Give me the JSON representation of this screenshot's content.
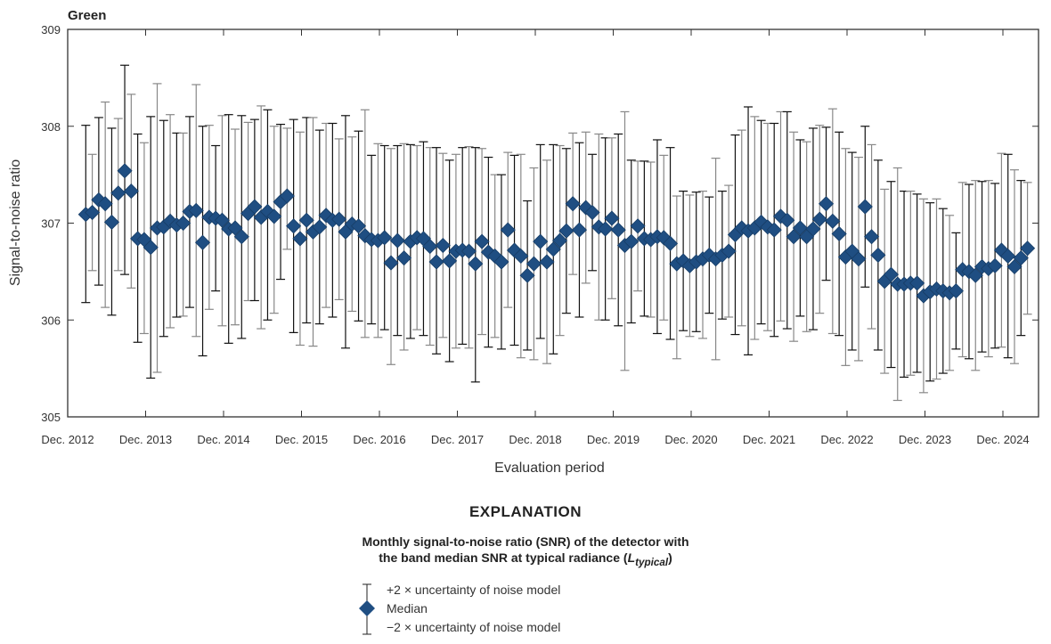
{
  "chart_data": {
    "type": "scatter",
    "title": "Green",
    "xlabel": "Evaluation period",
    "ylabel": "Signal-to-noise ratio",
    "ylim": [
      305,
      309
    ],
    "yticks": [
      305,
      306,
      307,
      308,
      309
    ],
    "xticks": [
      "Dec. 2012",
      "Dec. 2013",
      "Dec. 2014",
      "Dec. 2015",
      "Dec. 2016",
      "Dec. 2017",
      "Dec. 2018",
      "Dec. 2019",
      "Dec. 2020",
      "Dec. 2021",
      "Dec. 2022",
      "Dec. 2023",
      "Dec. 2024"
    ],
    "grid": false,
    "legend_position": "below",
    "series": [
      {
        "name": "Median",
        "marker": "diamond",
        "color": "#1f4e82",
        "values": [
          307.09,
          307.11,
          307.24,
          307.2,
          307.01,
          307.31,
          307.54,
          307.33,
          306.84,
          306.83,
          306.75,
          306.95,
          306.96,
          307.02,
          306.98,
          307.0,
          307.12,
          307.13,
          306.8,
          307.06,
          307.05,
          307.03,
          306.94,
          306.95,
          306.86,
          307.1,
          307.17,
          307.06,
          307.12,
          307.07,
          307.22,
          307.28,
          306.97,
          306.84,
          307.03,
          306.91,
          306.96,
          307.08,
          307.03,
          307.04,
          306.91,
          306.99,
          306.97,
          306.87,
          306.83,
          306.82,
          306.85,
          306.59,
          306.82,
          306.64,
          306.81,
          306.85,
          306.84,
          306.76,
          306.6,
          306.77,
          306.61,
          306.71,
          306.72,
          306.71,
          306.58,
          306.81,
          306.7,
          306.66,
          306.6,
          306.93,
          306.72,
          306.66,
          306.46,
          306.58,
          306.81,
          306.6,
          306.73,
          306.82,
          306.92,
          307.2,
          306.93,
          307.16,
          307.11,
          306.96,
          306.94,
          307.05,
          306.93,
          306.77,
          306.81,
          306.97,
          306.84,
          306.83,
          306.86,
          306.85,
          306.79,
          306.58,
          306.61,
          306.56,
          306.6,
          306.63,
          306.67,
          306.63,
          306.67,
          306.71,
          306.88,
          306.95,
          306.92,
          306.95,
          307.01,
          306.96,
          306.93,
          307.07,
          307.03,
          306.86,
          306.95,
          306.86,
          306.94,
          307.04,
          307.2,
          307.02,
          306.89,
          306.65,
          306.71,
          306.63,
          307.17,
          306.86,
          306.67,
          306.4,
          306.47,
          306.37,
          306.37,
          306.38,
          306.38,
          306.25,
          306.29,
          306.32,
          306.3,
          306.28,
          306.3,
          306.52,
          306.5,
          306.46,
          306.55,
          306.53,
          306.56,
          306.72,
          306.66,
          306.55,
          306.64,
          306.74
        ]
      },
      {
        "name": "+2 × uncertainty of noise model",
        "values_offset_upper": [
          0.92,
          0.6,
          0.85,
          1.05,
          0.97,
          0.77,
          1.09,
          1.0,
          1.08,
          1.0,
          1.35,
          1.49,
          1.1,
          1.1,
          0.95,
          0.93,
          0.98,
          1.3,
          1.2,
          0.95,
          0.75,
          1.08,
          1.18,
          1.02,
          1.25,
          0.94,
          0.9,
          1.15,
          1.05,
          0.93,
          0.8,
          0.7,
          1.1,
          1.1,
          1.06,
          1.18,
          1.0,
          0.95,
          1.0,
          0.83,
          1.2,
          0.9,
          0.98,
          1.3,
          0.87,
          1.0,
          0.95,
          1.18,
          0.98,
          1.18,
          1.0,
          0.95,
          1.0,
          1.02,
          1.18,
          0.95,
          1.04,
          1.0,
          1.06,
          1.08,
          1.2,
          0.96,
          0.98,
          0.84,
          0.9,
          0.8,
          0.98,
          1.05,
          0.77,
          0.99,
          1.0,
          1.05,
          1.08,
          0.98,
          0.85,
          0.73,
          0.9,
          0.78,
          0.6,
          0.96,
          0.94,
          0.83,
          0.99,
          1.38,
          0.84,
          0.67,
          0.8,
          0.8,
          1.0,
          0.85,
          0.99,
          0.7,
          0.72,
          0.73,
          0.72,
          0.7,
          0.6,
          1.04,
          0.66,
          0.68,
          1.03,
          1.01,
          1.28,
          1.15,
          1.05,
          1.07,
          1.1,
          1.08,
          1.12,
          1.08,
          0.91,
          0.98,
          1.04,
          0.97,
          0.79,
          1.16,
          1.05,
          1.12,
          1.02,
          1.05,
          0.83,
          0.95,
          0.98,
          0.95,
          0.96,
          1.2,
          0.96,
          0.95,
          0.92,
          1.0,
          0.92,
          0.93,
          0.85,
          0.8,
          0.6,
          0.9,
          0.9,
          0.98,
          0.88,
          0.91,
          0.85,
          1.0,
          1.05,
          1.0,
          0.8,
          0.68
        ],
        "values_offset_lower": [
          0.91,
          0.6,
          0.88,
          1.07,
          0.96,
          0.8,
          1.07,
          1.0,
          1.07,
          0.97,
          1.35,
          1.49,
          1.13,
          1.1,
          0.95,
          0.96,
          0.99,
          1.3,
          1.17,
          0.95,
          0.75,
          1.09,
          1.18,
          1.0,
          1.05,
          0.9,
          0.97,
          1.15,
          1.12,
          1.0,
          0.8,
          0.55,
          1.1,
          1.1,
          1.06,
          1.18,
          1.0,
          0.95,
          1.0,
          0.83,
          1.2,
          0.9,
          0.98,
          1.05,
          0.87,
          1.0,
          0.95,
          1.05,
          0.98,
          0.95,
          1.0,
          0.95,
          1.0,
          1.02,
          0.95,
          0.95,
          1.04,
          1.0,
          0.97,
          1.0,
          1.22,
          0.96,
          0.98,
          0.84,
          0.9,
          0.8,
          0.98,
          1.05,
          0.77,
          0.99,
          1.0,
          1.05,
          1.08,
          0.98,
          0.85,
          0.73,
          0.9,
          0.78,
          0.6,
          0.96,
          0.94,
          0.83,
          0.99,
          1.29,
          0.84,
          0.67,
          0.8,
          0.8,
          1.0,
          0.85,
          0.99,
          0.98,
          0.72,
          0.73,
          0.72,
          0.82,
          0.6,
          1.04,
          0.66,
          0.68,
          1.03,
          1.01,
          1.28,
          1.15,
          1.05,
          1.07,
          1.1,
          1.08,
          1.12,
          1.08,
          0.91,
          0.98,
          1.04,
          0.97,
          0.79,
          1.16,
          1.05,
          1.12,
          1.02,
          1.05,
          0.83,
          0.95,
          0.98,
          0.95,
          0.96,
          1.2,
          0.96,
          0.95,
          0.92,
          1.0,
          0.92,
          0.93,
          0.85,
          0.8,
          0.6,
          0.9,
          0.9,
          0.98,
          0.88,
          0.91,
          0.85,
          1.0,
          1.05,
          1.0,
          0.8,
          0.68
        ]
      }
    ],
    "legend": {
      "heading": "EXPLANATION",
      "description_line1": "Monthly signal-to-noise ratio (SNR) of the detector with",
      "description_line2_prefix": "the band median SNR at typical radiance (",
      "description_line2_symbol": "L",
      "description_line2_subscript": "typical",
      "description_line2_suffix": ")",
      "items": [
        {
          "label": "+2 × uncertainty of noise model"
        },
        {
          "label": "Median"
        },
        {
          "label": "−2 × uncertainty of noise model"
        }
      ]
    }
  },
  "colors": {
    "marker": "#1f4e82",
    "marker_edge": "#173d66",
    "errorbar_dark": "#111111",
    "errorbar_gray": "#888888",
    "axis": "#333333"
  }
}
